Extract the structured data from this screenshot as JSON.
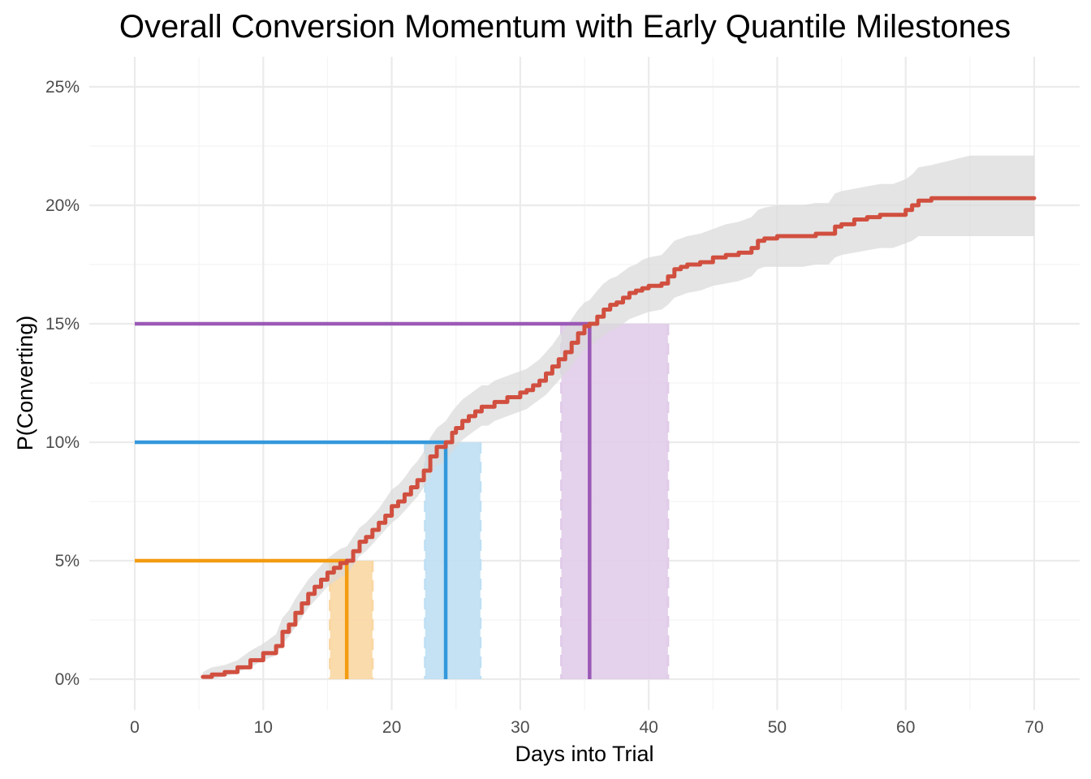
{
  "chart_data": {
    "type": "line",
    "title": "Overall Conversion Momentum with Early Quantile Milestones",
    "xlabel": "Days into Trial",
    "ylabel": "P(Converting)",
    "xlim": [
      0,
      70
    ],
    "ylim": [
      0,
      25
    ],
    "x_ticks": [
      0,
      10,
      20,
      30,
      40,
      50,
      60,
      70
    ],
    "y_ticks": [
      0,
      5,
      10,
      15,
      20,
      25
    ],
    "y_tick_labels": [
      "0%",
      "5%",
      "10%",
      "15%",
      "20%",
      "25%"
    ],
    "grid": true,
    "legend": "none",
    "colors": {
      "curve": "#d14f3f",
      "ribbon": "#d9d9d9",
      "grid": "#ebebeb"
    },
    "series": [
      {
        "values_unit": "percent",
        "x": [
          5.3,
          6,
          7,
          8,
          9,
          10,
          11,
          11.5,
          12,
          12.5,
          13,
          13.5,
          14,
          14.5,
          15,
          15.5,
          16,
          16.5,
          17,
          17.5,
          18,
          18.5,
          19,
          19.5,
          20,
          20.5,
          21,
          21.5,
          22,
          22.5,
          23,
          23.5,
          24.2,
          24.7,
          25,
          25.5,
          26,
          26.5,
          27,
          27.5,
          28,
          29,
          30,
          30.5,
          31,
          31.5,
          32,
          32.5,
          33,
          33.5,
          34,
          34.5,
          35,
          35.4,
          36,
          36.5,
          37,
          37.5,
          38,
          38.5,
          39,
          39.5,
          40,
          41,
          41.5,
          42,
          42.5,
          43,
          44,
          45,
          46,
          47,
          48,
          48.5,
          49,
          50,
          51,
          52,
          53,
          54,
          54.5,
          55,
          56,
          57,
          58,
          59,
          60,
          60.5,
          61,
          62,
          65,
          70
        ],
        "y": [
          0.1,
          0.2,
          0.3,
          0.5,
          0.8,
          1.1,
          1.4,
          2.0,
          2.3,
          2.8,
          3.2,
          3.6,
          3.9,
          4.2,
          4.5,
          4.7,
          4.9,
          5.0,
          5.4,
          5.8,
          6.0,
          6.3,
          6.6,
          6.9,
          7.3,
          7.5,
          7.8,
          8.1,
          8.4,
          8.8,
          9.4,
          9.8,
          10.0,
          10.4,
          10.6,
          10.9,
          11.1,
          11.3,
          11.5,
          11.5,
          11.7,
          11.9,
          12.1,
          12.2,
          12.4,
          12.6,
          12.9,
          13.2,
          13.5,
          13.8,
          14.2,
          14.6,
          14.9,
          15.0,
          15.3,
          15.6,
          15.8,
          15.9,
          16.1,
          16.3,
          16.4,
          16.5,
          16.6,
          16.7,
          17.0,
          17.3,
          17.4,
          17.5,
          17.6,
          17.8,
          17.9,
          18.0,
          18.2,
          18.5,
          18.6,
          18.7,
          18.7,
          18.7,
          18.8,
          18.8,
          19.1,
          19.2,
          19.4,
          19.5,
          19.6,
          19.6,
          19.8,
          20.0,
          20.2,
          20.3,
          20.3,
          20.3
        ],
        "lower": [
          0.0,
          0.0,
          0.1,
          0.3,
          0.5,
          0.8,
          1.0,
          1.5,
          1.8,
          2.2,
          2.6,
          3.0,
          3.3,
          3.6,
          3.9,
          4.1,
          4.3,
          4.4,
          4.8,
          5.2,
          5.4,
          5.7,
          6.0,
          6.3,
          6.6,
          6.8,
          7.1,
          7.4,
          7.7,
          8.1,
          8.6,
          9.0,
          9.2,
          9.6,
          9.8,
          10.1,
          10.3,
          10.5,
          10.7,
          10.7,
          10.9,
          11.1,
          11.3,
          11.4,
          11.6,
          11.8,
          12.0,
          12.3,
          12.6,
          12.9,
          13.2,
          13.6,
          13.9,
          14.0,
          14.3,
          14.5,
          14.7,
          14.8,
          15.0,
          15.2,
          15.3,
          15.4,
          15.5,
          15.6,
          15.8,
          16.1,
          16.2,
          16.3,
          16.4,
          16.6,
          16.7,
          16.8,
          17.0,
          17.3,
          17.4,
          17.4,
          17.4,
          17.4,
          17.5,
          17.5,
          17.8,
          17.9,
          18.0,
          18.1,
          18.2,
          18.2,
          18.4,
          18.5,
          18.7,
          18.7,
          18.7,
          18.7
        ],
        "upper": [
          0.3,
          0.5,
          0.6,
          0.8,
          1.2,
          1.5,
          1.9,
          2.6,
          2.9,
          3.4,
          3.8,
          4.2,
          4.5,
          4.8,
          5.1,
          5.3,
          5.5,
          5.6,
          6.0,
          6.4,
          6.6,
          6.9,
          7.2,
          7.6,
          8.0,
          8.2,
          8.5,
          8.9,
          9.2,
          9.6,
          10.2,
          10.6,
          10.9,
          11.3,
          11.5,
          11.8,
          12.0,
          12.2,
          12.4,
          12.4,
          12.6,
          12.8,
          13.0,
          13.1,
          13.3,
          13.5,
          13.8,
          14.1,
          14.5,
          14.8,
          15.2,
          15.6,
          15.9,
          16.0,
          16.4,
          16.7,
          16.9,
          17.0,
          17.2,
          17.4,
          17.5,
          17.7,
          17.8,
          17.9,
          18.2,
          18.5,
          18.6,
          18.7,
          18.8,
          19.0,
          19.2,
          19.3,
          19.5,
          19.8,
          19.9,
          20.0,
          20.0,
          20.0,
          20.1,
          20.1,
          20.5,
          20.6,
          20.7,
          20.8,
          20.9,
          20.9,
          21.1,
          21.3,
          21.6,
          21.7,
          22.1,
          22.1
        ]
      }
    ],
    "milestones": [
      {
        "quantile_percent": 5,
        "day": 16.5,
        "ci": [
          15.2,
          18.5
        ],
        "color": "#f39c12",
        "fill": "#f9d7a3"
      },
      {
        "quantile_percent": 10,
        "day": 24.2,
        "ci": [
          22.6,
          26.9
        ],
        "color": "#3498db",
        "fill": "#bfdff3"
      },
      {
        "quantile_percent": 15,
        "day": 35.4,
        "ci": [
          33.2,
          41.5
        ],
        "color": "#9b59b6",
        "fill": "#e1cce9"
      }
    ]
  }
}
